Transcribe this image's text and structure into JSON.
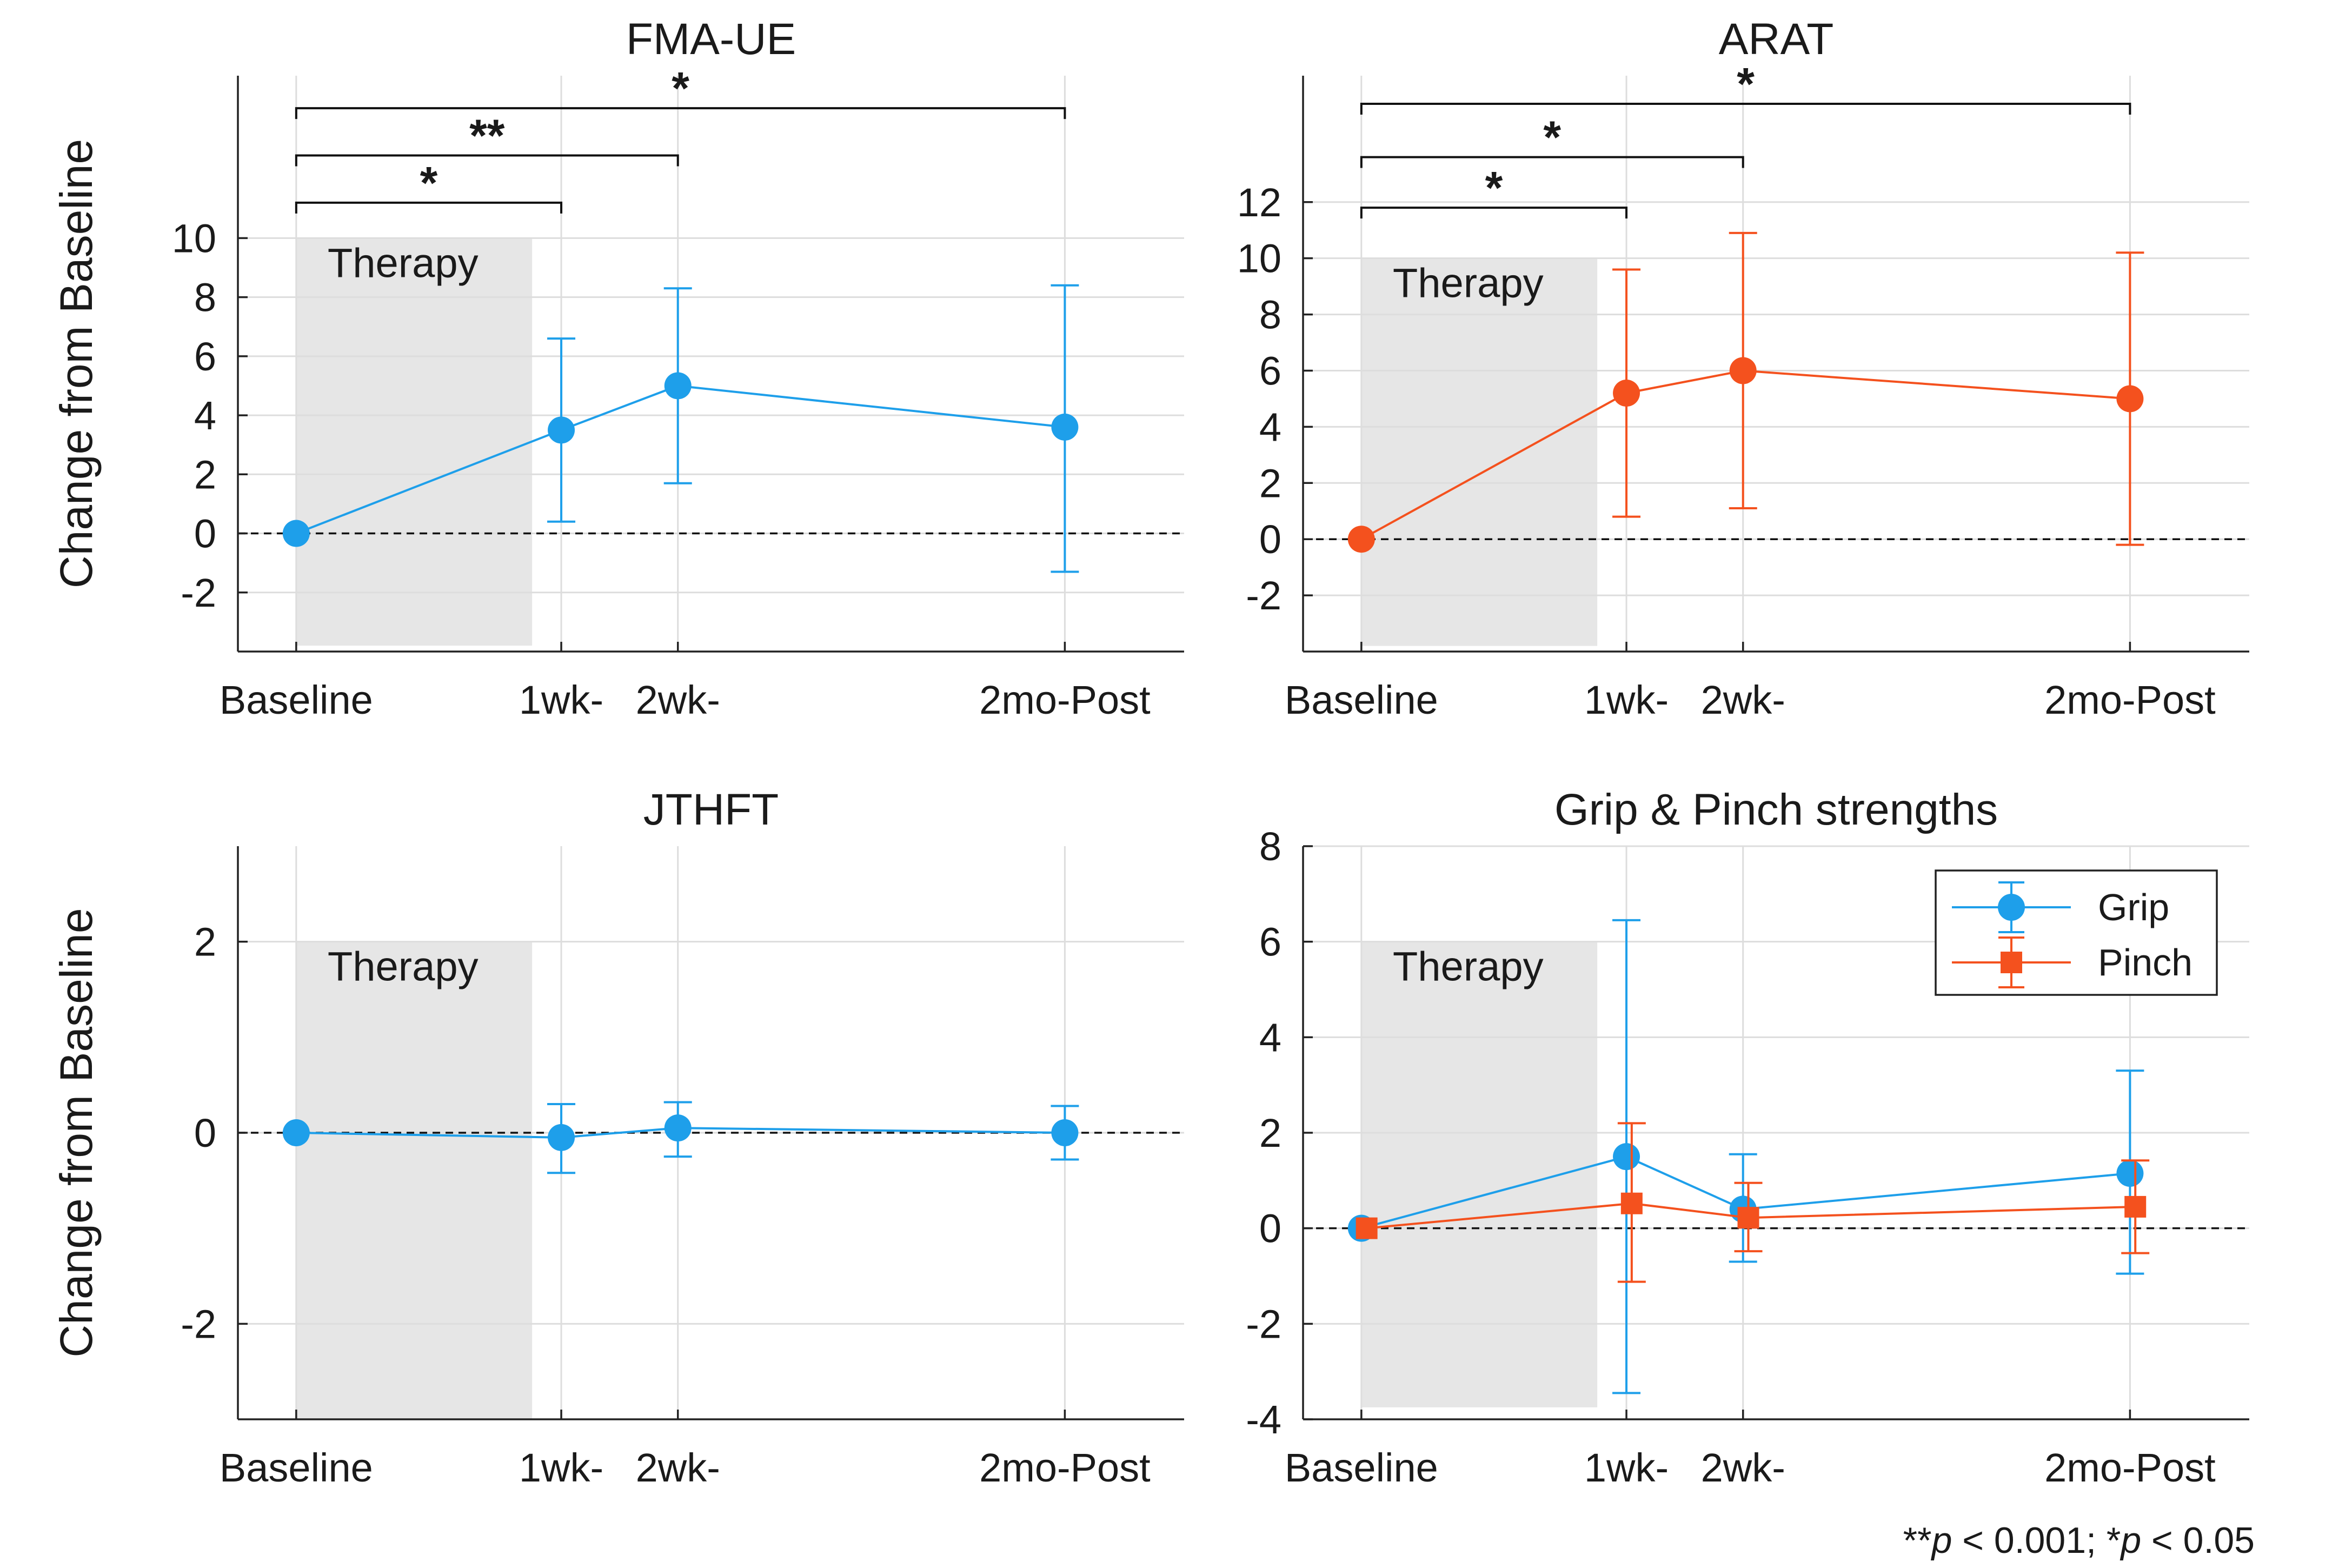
{
  "footnote": {
    "double_star": "**",
    "p1": "p",
    "val1": " < 0.001; ",
    "single_star": "*",
    "p2": "p",
    "val2": " < 0.05"
  },
  "colors": {
    "grip": "#1E9FEA",
    "pinch": "#F4511E",
    "shade": "#E6E6E6",
    "grid": "#DDDDDD"
  },
  "chart_data": [
    {
      "id": "fma",
      "type": "line",
      "title": "FMA-UE",
      "ylabel": "Change from Baseline",
      "xlabel": "",
      "shade_label": "Therapy",
      "x_ticks": [
        {
          "label": "Baseline",
          "x": 0
        },
        {
          "label": "1wk-",
          "x": 1
        },
        {
          "label": "2wk-",
          "x": 1.44
        },
        {
          "label": "2mo-Post",
          "x": 2.9
        }
      ],
      "xlim": [
        -0.22,
        3.35
      ],
      "ylim": [
        -4,
        15.5
      ],
      "yticks": [
        -2,
        0,
        2,
        4,
        6,
        8,
        10
      ],
      "shade_region": {
        "x0": 0,
        "x1": 0.89,
        "y0": -3.8,
        "y1": 10
      },
      "series": [
        {
          "color": "grip",
          "marker": "circle",
          "x": [
            0,
            1,
            1.44,
            2.9
          ],
          "values": [
            0,
            3.5,
            5.0,
            3.6
          ],
          "err_low": [
            null,
            0.4,
            1.7,
            -1.3
          ],
          "err_high": [
            null,
            6.6,
            8.3,
            8.4
          ]
        }
      ],
      "significance": [
        {
          "label": "*",
          "x0": 0,
          "x1": 1,
          "y": 11.2
        },
        {
          "label": "**",
          "x0": 0,
          "x1": 1.44,
          "y": 12.8
        },
        {
          "label": "*",
          "x0": 0,
          "x1": 2.9,
          "y": 14.4
        }
      ],
      "grid": true,
      "zero_line": "dashed"
    },
    {
      "id": "arat",
      "type": "line",
      "title": "ARAT",
      "ylabel": "",
      "xlabel": "",
      "shade_label": "Therapy",
      "x_ticks": [
        {
          "label": "Baseline",
          "x": 0
        },
        {
          "label": "1wk-",
          "x": 1
        },
        {
          "label": "2wk-",
          "x": 1.44
        },
        {
          "label": "2mo-Post",
          "x": 2.9
        }
      ],
      "xlim": [
        -0.22,
        3.35
      ],
      "ylim": [
        -4,
        16.5
      ],
      "yticks": [
        -2,
        0,
        2,
        4,
        6,
        8,
        10,
        12
      ],
      "shade_region": {
        "x0": 0,
        "x1": 0.89,
        "y0": -3.8,
        "y1": 10
      },
      "series": [
        {
          "color": "pinch",
          "marker": "circle",
          "x": [
            0,
            1,
            1.44,
            2.9
          ],
          "values": [
            0,
            5.2,
            6.0,
            5.0
          ],
          "err_low": [
            null,
            0.8,
            1.1,
            -0.2
          ],
          "err_high": [
            null,
            9.6,
            10.9,
            10.2
          ]
        }
      ],
      "significance": [
        {
          "label": "*",
          "x0": 0,
          "x1": 1,
          "y": 11.8
        },
        {
          "label": "*",
          "x0": 0,
          "x1": 1.44,
          "y": 13.6
        },
        {
          "label": "*",
          "x0": 0,
          "x1": 2.9,
          "y": 15.5
        }
      ],
      "grid": true,
      "zero_line": "dashed"
    },
    {
      "id": "jthft",
      "type": "line",
      "title": "JTHFT",
      "ylabel": "Change from Baseline",
      "xlabel": "",
      "shade_label": "Therapy",
      "x_ticks": [
        {
          "label": "Baseline",
          "x": 0
        },
        {
          "label": "1wk-",
          "x": 1
        },
        {
          "label": "2wk-",
          "x": 1.44
        },
        {
          "label": "2mo-Post",
          "x": 2.9
        }
      ],
      "xlim": [
        -0.22,
        3.35
      ],
      "ylim": [
        -3,
        3
      ],
      "yticks": [
        -2,
        0,
        2
      ],
      "shade_region": {
        "x0": 0,
        "x1": 0.89,
        "y0": -3,
        "y1": 2
      },
      "series": [
        {
          "color": "grip",
          "marker": "circle",
          "x": [
            0,
            1,
            1.44,
            2.9
          ],
          "values": [
            0,
            -0.05,
            0.05,
            0.0
          ],
          "err_low": [
            null,
            -0.42,
            -0.25,
            -0.28
          ],
          "err_high": [
            null,
            0.3,
            0.32,
            0.28
          ]
        }
      ],
      "significance": [],
      "grid": true,
      "zero_line": "dashed"
    },
    {
      "id": "grip",
      "type": "line",
      "title": "Grip & Pinch strengths",
      "ylabel": "",
      "xlabel": "",
      "shade_label": "Therapy",
      "x_ticks": [
        {
          "label": "Baseline",
          "x": 0
        },
        {
          "label": "1wk-",
          "x": 1
        },
        {
          "label": "2wk-",
          "x": 1.44
        },
        {
          "label": "2mo-Post",
          "x": 2.9
        }
      ],
      "xlim": [
        -0.22,
        3.35
      ],
      "ylim": [
        -4,
        8
      ],
      "yticks": [
        -4,
        -2,
        0,
        2,
        4,
        6,
        8
      ],
      "shade_region": {
        "x0": 0,
        "x1": 0.89,
        "y0": -3.75,
        "y1": 6
      },
      "legend": "top-right",
      "series": [
        {
          "name": "Grip",
          "color": "grip",
          "marker": "circle",
          "x": [
            0,
            1,
            1.44,
            2.9
          ],
          "values": [
            0,
            1.5,
            0.4,
            1.15
          ],
          "err_low": [
            null,
            -3.45,
            -0.7,
            -0.95
          ],
          "err_high": [
            null,
            6.45,
            1.55,
            3.3
          ]
        },
        {
          "name": "Pinch",
          "color": "pinch",
          "marker": "square",
          "x": [
            0.02,
            1.02,
            1.46,
            2.92
          ],
          "values": [
            0,
            0.52,
            0.22,
            0.45
          ],
          "err_low": [
            null,
            -1.12,
            -0.48,
            -0.52
          ],
          "err_high": [
            null,
            2.2,
            0.95,
            1.42
          ]
        }
      ],
      "significance": [],
      "grid": true,
      "zero_line": "dashed"
    }
  ]
}
